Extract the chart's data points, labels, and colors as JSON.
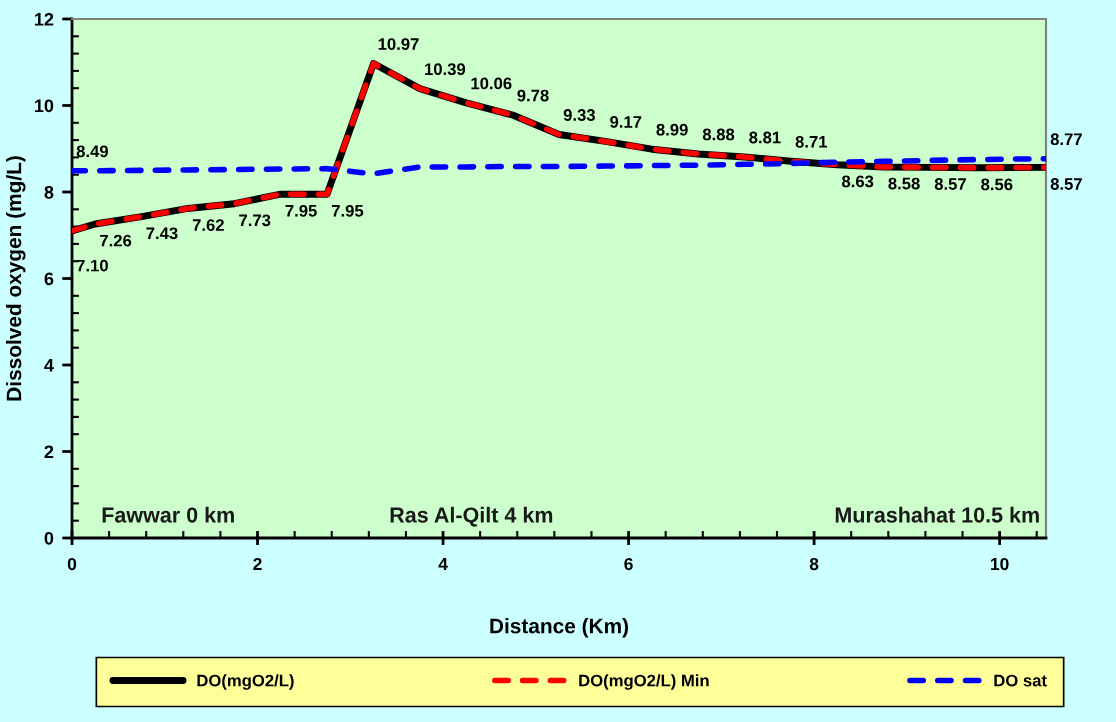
{
  "chart_data": {
    "type": "line",
    "xlabel": "Distance (Km)",
    "ylabel": "Dissolved oxygen (mg/L)",
    "x": [
      0,
      0.25,
      0.75,
      1.25,
      1.75,
      2.25,
      2.75,
      3.25,
      3.75,
      4.25,
      4.75,
      5.25,
      5.75,
      6.25,
      6.75,
      7.25,
      7.75,
      8.25,
      8.75,
      9.25,
      9.75,
      10.5
    ],
    "series": [
      {
        "name": "DO(mgO2/L)",
        "color": "#000000",
        "line_style": "solid",
        "values": [
          7.1,
          7.26,
          7.43,
          7.62,
          7.73,
          7.95,
          7.95,
          10.97,
          10.39,
          10.06,
          9.78,
          9.33,
          9.17,
          8.99,
          8.88,
          8.81,
          8.71,
          8.63,
          8.58,
          8.57,
          8.56,
          8.57
        ],
        "value_labels": [
          "7.10",
          "7.26",
          "7.43",
          "7.62",
          "7.73",
          "7.95",
          "7.95",
          "10.97",
          "10.39",
          "10.06",
          "9.78",
          "9.33",
          "9.17",
          "8.99",
          "8.88",
          "8.81",
          "8.71",
          "8.63",
          "8.58",
          "8.57",
          "8.56",
          "8.57"
        ]
      },
      {
        "name": "DO(mgO2/L) Min",
        "color": "#ff0000",
        "line_style": "dashed",
        "values": [
          7.1,
          7.26,
          7.43,
          7.62,
          7.73,
          7.95,
          7.95,
          10.97,
          10.39,
          10.06,
          9.78,
          9.33,
          9.17,
          8.99,
          8.88,
          8.81,
          8.71,
          8.63,
          8.58,
          8.57,
          8.56,
          8.57
        ]
      },
      {
        "name": "DO sat",
        "color": "#0000ff",
        "line_style": "dashed",
        "values": [
          8.49,
          8.49,
          8.5,
          8.51,
          8.52,
          8.53,
          8.54,
          8.42,
          8.58,
          8.58,
          8.59,
          8.59,
          8.6,
          8.61,
          8.62,
          8.64,
          8.66,
          8.69,
          8.71,
          8.73,
          8.75,
          8.77
        ],
        "value_labels": [
          "8.49",
          null,
          null,
          null,
          null,
          null,
          null,
          null,
          null,
          null,
          null,
          null,
          null,
          null,
          null,
          null,
          null,
          null,
          null,
          null,
          null,
          "8.77"
        ]
      }
    ],
    "annotations": [
      "Fawwar 0 km",
      "Ras Al-Qilt 4 km",
      "Murashahat 10.5 km"
    ],
    "xlim": [
      0,
      10.5
    ],
    "xticks": [
      0,
      {
        "value": 0.4,
        "label": null
      },
      {
        "value": 0.8,
        "label": null
      },
      {
        "value": 1.2,
        "label": null
      },
      {
        "value": 1.6,
        "label": null
      },
      2,
      {
        "value": 2.4,
        "label": null
      },
      {
        "value": 2.8,
        "label": null
      },
      {
        "value": 3.2,
        "label": null
      },
      {
        "value": 3.6,
        "label": null
      },
      4,
      {
        "value": 4.4,
        "label": null
      },
      {
        "value": 4.8,
        "label": null
      },
      {
        "value": 5.2,
        "label": null
      },
      {
        "value": 5.6,
        "label": null
      },
      6,
      {
        "value": 6.4,
        "label": null
      },
      {
        "value": 6.8,
        "label": null
      },
      {
        "value": 7.2,
        "label": null
      },
      {
        "value": 7.6,
        "label": null
      },
      8,
      {
        "value": 8.4,
        "label": null
      },
      {
        "value": 8.8,
        "label": null
      },
      {
        "value": 9.2,
        "label": null
      },
      {
        "value": 9.6,
        "label": null
      },
      10,
      {
        "value": 10.4,
        "label": null
      }
    ],
    "ylim": [
      0,
      12
    ],
    "yticks": [
      0,
      {
        "value": 0.4,
        "label": null
      },
      {
        "value": 0.8,
        "label": null
      },
      {
        "value": 1.2,
        "label": null
      },
      {
        "value": 1.6,
        "label": null
      },
      2,
      {
        "value": 2.4,
        "label": null
      },
      {
        "value": 2.8,
        "label": null
      },
      {
        "value": 3.2,
        "label": null
      },
      {
        "value": 3.6,
        "label": null
      },
      4,
      {
        "value": 4.4,
        "label": null
      },
      {
        "value": 4.8,
        "label": null
      },
      {
        "value": 5.2,
        "label": null
      },
      {
        "value": 5.6,
        "label": null
      },
      6,
      {
        "value": 6.4,
        "label": null
      },
      {
        "value": 6.8,
        "label": null
      },
      {
        "value": 7.2,
        "label": null
      },
      {
        "value": 7.6,
        "label": null
      },
      8,
      {
        "value": 8.4,
        "label": null
      },
      {
        "value": 8.8,
        "label": null
      },
      {
        "value": 9.2,
        "label": null
      },
      {
        "value": 9.6,
        "label": null
      },
      10,
      {
        "value": 10.4,
        "label": null
      },
      {
        "value": 10.8,
        "label": null
      },
      {
        "value": 11.2,
        "label": null
      },
      {
        "value": 11.6,
        "label": null
      },
      12
    ],
    "marker": "none",
    "legend": "bottom"
  }
}
